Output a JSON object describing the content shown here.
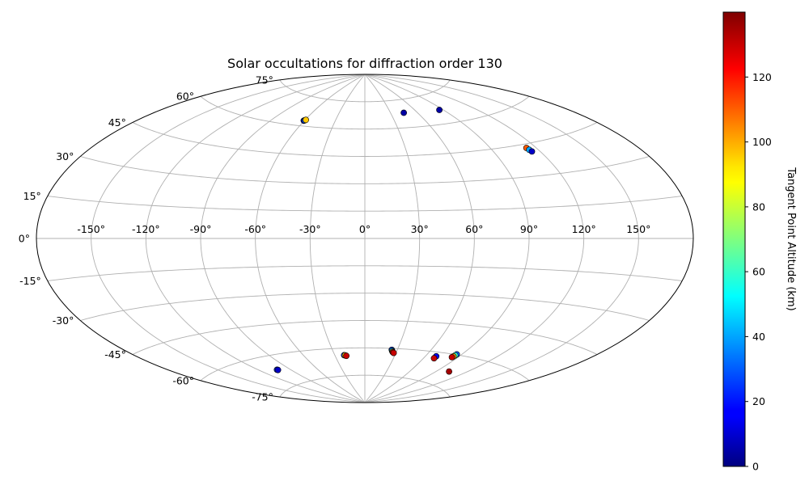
{
  "chart_data": {
    "type": "scatter",
    "projection": "aitoff",
    "title": "Solar occultations for diffraction order 130",
    "grid": true,
    "longitude_ticks": [
      "-150°",
      "-120°",
      "-90°",
      "-60°",
      "-30°",
      "0°",
      "30°",
      "60°",
      "90°",
      "120°",
      "150°"
    ],
    "latitude_ticks": [
      "75°",
      "60°",
      "45°",
      "30°",
      "15°",
      "0°",
      "-15°",
      "-30°",
      "-45°",
      "-60°",
      "-75°"
    ],
    "colorbar": {
      "label": "Tangent Point Altitude (km)",
      "colormap": "jet",
      "range": [
        0,
        140
      ],
      "ticks": [
        "0",
        "20",
        "40",
        "60",
        "80",
        "100",
        "120"
      ]
    },
    "groups": [
      {
        "lon": -60,
        "lat": 63,
        "points": [
          [
            -60.5,
            62.8,
            5
          ],
          [
            -60,
            63,
            30
          ],
          [
            -59.2,
            63.3,
            95
          ]
        ]
      },
      {
        "lon": 45,
        "lat": 68,
        "points": [
          [
            45,
            68,
            5
          ]
        ]
      },
      {
        "lon": 86,
        "lat": 67,
        "points": [
          [
            86,
            67,
            5
          ]
        ]
      },
      {
        "lon": 114,
        "lat": 42,
        "points": [
          [
            113.7,
            43.2,
            110
          ],
          [
            114.2,
            42.2,
            40
          ],
          [
            114.8,
            41.3,
            10
          ]
        ]
      },
      {
        "lon": 25,
        "lat": -61,
        "points": [
          [
            25,
            -60.8,
            25
          ],
          [
            25.6,
            -61.3,
            45
          ],
          [
            26.3,
            -61.8,
            95
          ],
          [
            27,
            -62.1,
            120
          ],
          [
            27.8,
            -62.4,
            130
          ]
        ]
      },
      {
        "lon": -20,
        "lat": -64,
        "points": [
          [
            -20.8,
            -63.8,
            25
          ],
          [
            -19.8,
            -63.9,
            95
          ],
          [
            -18.8,
            -64.2,
            130
          ]
        ]
      },
      {
        "lon": 70,
        "lat": -63,
        "points": [
          [
            70,
            -62.2,
            15
          ],
          [
            70,
            -63.3,
            130
          ]
        ]
      },
      {
        "lon": 85,
        "lat": -60,
        "points": [
          [
            85.8,
            -59.8,
            30
          ],
          [
            85.5,
            -60.4,
            60
          ],
          [
            85.2,
            -61,
            100
          ],
          [
            84.8,
            -61.5,
            130
          ]
        ]
      },
      {
        "lon": -103,
        "lat": -67,
        "points": [
          [
            -103.3,
            -66.9,
            25
          ],
          [
            -102.8,
            -67.1,
            10
          ]
        ]
      },
      {
        "lon": 103,
        "lat": -68,
        "points": [
          [
            103,
            -68,
            135
          ]
        ]
      }
    ]
  }
}
